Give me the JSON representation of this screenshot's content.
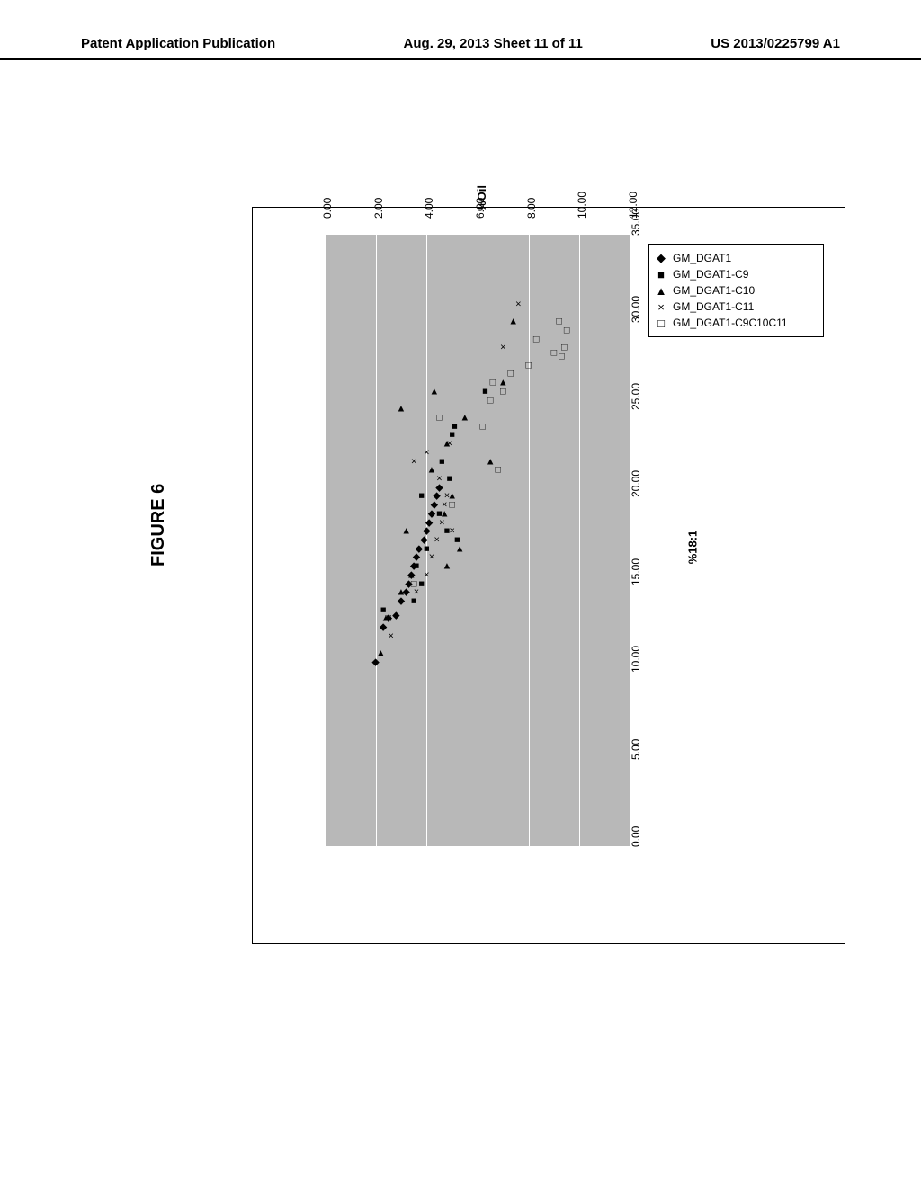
{
  "header": {
    "left": "Patent Application Publication",
    "center": "Aug. 29, 2013  Sheet 11 of 11",
    "right": "US 2013/0225799 A1"
  },
  "figure": {
    "title": "FIGURE 6"
  },
  "chart": {
    "type": "scatter",
    "background_color": "#b8b8b8",
    "grid_color": "#ffffff",
    "xlabel": "%18:1",
    "ylabel": "%Oil",
    "xlim": [
      0,
      35
    ],
    "ylim": [
      0,
      12
    ],
    "xtick_step": 5,
    "ytick_step": 2,
    "xticks": [
      "0.00",
      "5.00",
      "10.00",
      "15.00",
      "20.00",
      "25.00",
      "30.00",
      "35.00"
    ],
    "yticks": [
      "0.00",
      "2.00",
      "4.00",
      "6.00",
      "8.00",
      "10.00",
      "12.00"
    ],
    "series": [
      {
        "name": "GM_DGAT1",
        "marker": "diamond",
        "glyph": "◆"
      },
      {
        "name": "GM_DGAT1-C9",
        "marker": "square-filled",
        "glyph": "■"
      },
      {
        "name": "GM_DGAT1-C10",
        "marker": "triangle",
        "glyph": "▲"
      },
      {
        "name": "GM_DGAT1-C11",
        "marker": "x",
        "glyph": "×"
      },
      {
        "name": "GM_DGAT1-C9C10C11",
        "marker": "square-open",
        "glyph": "□"
      }
    ],
    "points": [
      {
        "x": 10.5,
        "y": 2.0,
        "s": 0
      },
      {
        "x": 12.5,
        "y": 2.3,
        "s": 0
      },
      {
        "x": 13.0,
        "y": 2.5,
        "s": 0
      },
      {
        "x": 13.2,
        "y": 2.8,
        "s": 0
      },
      {
        "x": 14.0,
        "y": 3.0,
        "s": 0
      },
      {
        "x": 14.5,
        "y": 3.2,
        "s": 0
      },
      {
        "x": 15.0,
        "y": 3.3,
        "s": 0
      },
      {
        "x": 15.5,
        "y": 3.4,
        "s": 0
      },
      {
        "x": 16.0,
        "y": 3.5,
        "s": 0
      },
      {
        "x": 16.5,
        "y": 3.6,
        "s": 0
      },
      {
        "x": 17.0,
        "y": 3.7,
        "s": 0
      },
      {
        "x": 17.5,
        "y": 3.9,
        "s": 0
      },
      {
        "x": 18.0,
        "y": 4.0,
        "s": 0
      },
      {
        "x": 18.5,
        "y": 4.1,
        "s": 0
      },
      {
        "x": 19.0,
        "y": 4.2,
        "s": 0
      },
      {
        "x": 19.5,
        "y": 4.3,
        "s": 0
      },
      {
        "x": 20.0,
        "y": 4.4,
        "s": 0
      },
      {
        "x": 20.5,
        "y": 4.5,
        "s": 0
      },
      {
        "x": 13.5,
        "y": 2.3,
        "s": 1
      },
      {
        "x": 14.0,
        "y": 3.5,
        "s": 1
      },
      {
        "x": 15.0,
        "y": 3.8,
        "s": 1
      },
      {
        "x": 16.0,
        "y": 3.6,
        "s": 1
      },
      {
        "x": 17.0,
        "y": 4.0,
        "s": 1
      },
      {
        "x": 17.5,
        "y": 5.2,
        "s": 1
      },
      {
        "x": 18.0,
        "y": 4.8,
        "s": 1
      },
      {
        "x": 19.0,
        "y": 4.5,
        "s": 1
      },
      {
        "x": 20.0,
        "y": 3.8,
        "s": 1
      },
      {
        "x": 21.0,
        "y": 4.9,
        "s": 1
      },
      {
        "x": 22.0,
        "y": 4.6,
        "s": 1
      },
      {
        "x": 23.5,
        "y": 5.0,
        "s": 1
      },
      {
        "x": 24.0,
        "y": 5.1,
        "s": 1
      },
      {
        "x": 26.0,
        "y": 6.3,
        "s": 1
      },
      {
        "x": 11.0,
        "y": 2.2,
        "s": 2
      },
      {
        "x": 13.0,
        "y": 2.4,
        "s": 2
      },
      {
        "x": 14.5,
        "y": 3.0,
        "s": 2
      },
      {
        "x": 15.5,
        "y": 3.4,
        "s": 2
      },
      {
        "x": 16.0,
        "y": 4.8,
        "s": 2
      },
      {
        "x": 17.0,
        "y": 5.3,
        "s": 2
      },
      {
        "x": 18.0,
        "y": 3.2,
        "s": 2
      },
      {
        "x": 19.0,
        "y": 4.7,
        "s": 2
      },
      {
        "x": 20.0,
        "y": 5.0,
        "s": 2
      },
      {
        "x": 21.5,
        "y": 4.2,
        "s": 2
      },
      {
        "x": 22.0,
        "y": 6.5,
        "s": 2
      },
      {
        "x": 23.0,
        "y": 4.8,
        "s": 2
      },
      {
        "x": 24.5,
        "y": 5.5,
        "s": 2
      },
      {
        "x": 25.0,
        "y": 3.0,
        "s": 2
      },
      {
        "x": 26.0,
        "y": 4.3,
        "s": 2
      },
      {
        "x": 26.5,
        "y": 7.0,
        "s": 2
      },
      {
        "x": 30.0,
        "y": 7.4,
        "s": 2
      },
      {
        "x": 12.0,
        "y": 2.6,
        "s": 3
      },
      {
        "x": 14.5,
        "y": 3.6,
        "s": 3
      },
      {
        "x": 15.5,
        "y": 4.0,
        "s": 3
      },
      {
        "x": 16.5,
        "y": 4.2,
        "s": 3
      },
      {
        "x": 17.5,
        "y": 4.4,
        "s": 3
      },
      {
        "x": 18.0,
        "y": 5.0,
        "s": 3
      },
      {
        "x": 18.5,
        "y": 4.6,
        "s": 3
      },
      {
        "x": 19.5,
        "y": 4.7,
        "s": 3
      },
      {
        "x": 20.0,
        "y": 4.8,
        "s": 3
      },
      {
        "x": 21.0,
        "y": 4.5,
        "s": 3
      },
      {
        "x": 22.0,
        "y": 3.5,
        "s": 3
      },
      {
        "x": 22.5,
        "y": 4.0,
        "s": 3
      },
      {
        "x": 23.0,
        "y": 4.9,
        "s": 3
      },
      {
        "x": 23.5,
        "y": 5.0,
        "s": 3
      },
      {
        "x": 24.0,
        "y": 5.1,
        "s": 3
      },
      {
        "x": 28.5,
        "y": 7.0,
        "s": 3
      },
      {
        "x": 31.0,
        "y": 7.6,
        "s": 3
      },
      {
        "x": 13.0,
        "y": 2.5,
        "s": 4
      },
      {
        "x": 15.0,
        "y": 3.5,
        "s": 4
      },
      {
        "x": 19.5,
        "y": 5.0,
        "s": 4
      },
      {
        "x": 21.5,
        "y": 6.8,
        "s": 4
      },
      {
        "x": 24.0,
        "y": 6.2,
        "s": 4
      },
      {
        "x": 24.5,
        "y": 4.5,
        "s": 4
      },
      {
        "x": 25.5,
        "y": 6.5,
        "s": 4
      },
      {
        "x": 26.0,
        "y": 7.0,
        "s": 4
      },
      {
        "x": 26.5,
        "y": 6.6,
        "s": 4
      },
      {
        "x": 27.0,
        "y": 7.3,
        "s": 4
      },
      {
        "x": 27.5,
        "y": 8.0,
        "s": 4
      },
      {
        "x": 28.0,
        "y": 9.3,
        "s": 4
      },
      {
        "x": 28.2,
        "y": 9.0,
        "s": 4
      },
      {
        "x": 28.5,
        "y": 9.4,
        "s": 4
      },
      {
        "x": 29.0,
        "y": 8.3,
        "s": 4
      },
      {
        "x": 29.5,
        "y": 9.5,
        "s": 4
      },
      {
        "x": 30.0,
        "y": 9.2,
        "s": 4
      }
    ]
  }
}
